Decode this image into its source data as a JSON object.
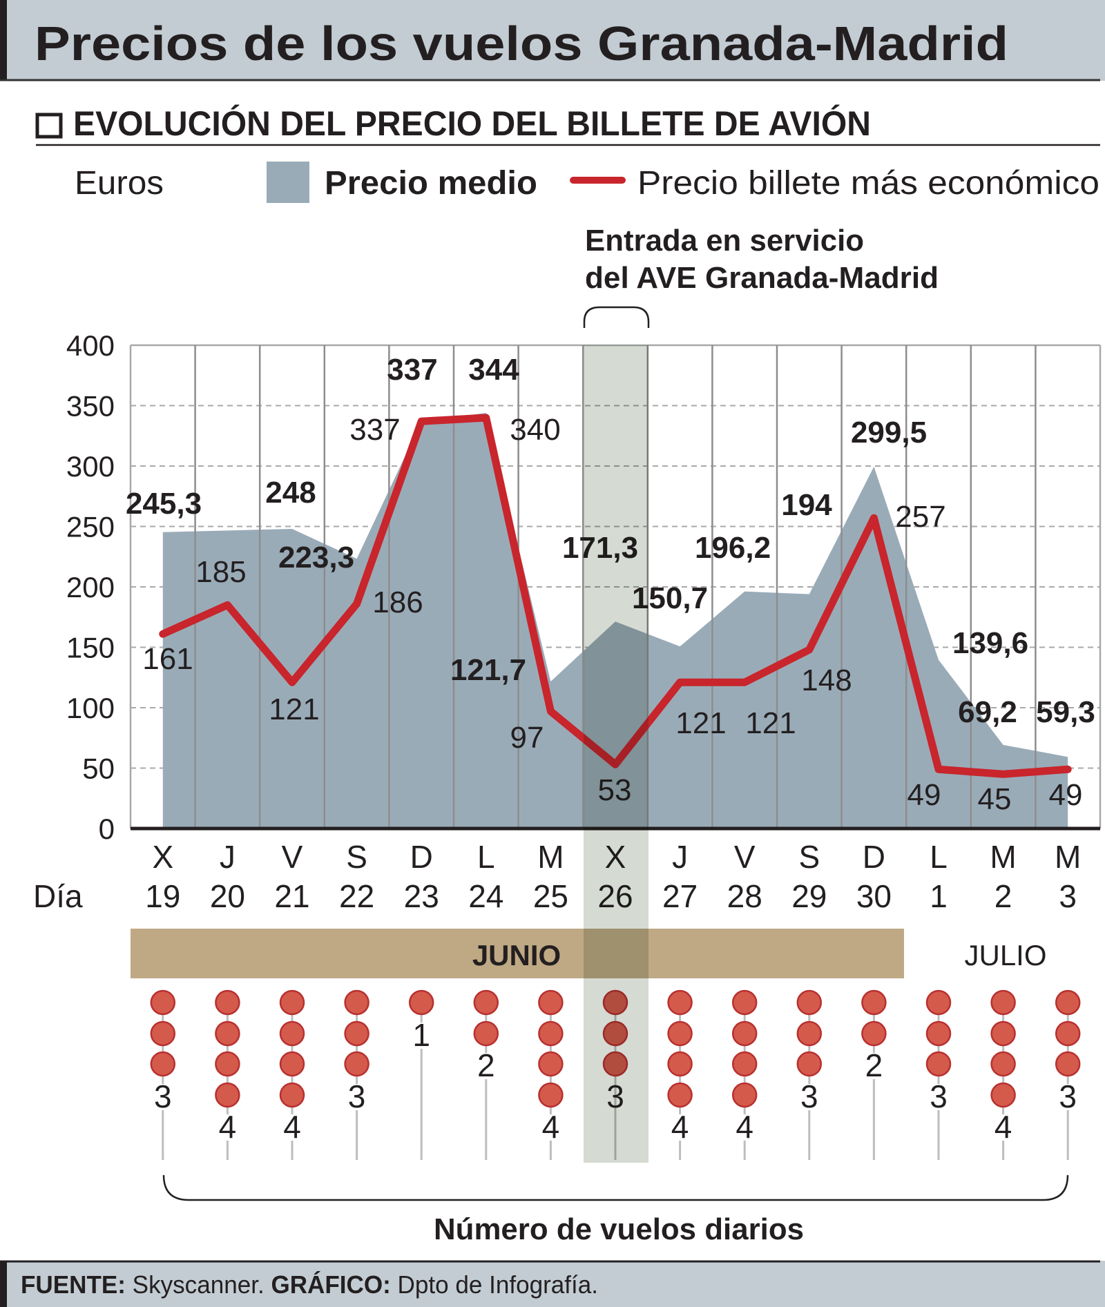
{
  "header": {
    "title": "Precios de los vuelos Granada-Madrid"
  },
  "section": {
    "title": "EVOLUCIÓN DEL PRECIO DEL BILLETE DE AVIÓN"
  },
  "legend": {
    "unit": "Euros",
    "average": "Precio medio",
    "cheapest": "Precio billete más económico"
  },
  "annotation": {
    "line1": "Entrada en servicio",
    "line2": "del AVE Granada-Madrid"
  },
  "axis": {
    "day_label": "Día"
  },
  "months": {
    "june": "JUNIO",
    "july": "JULIO"
  },
  "flights": {
    "caption": "Número de vuelos diarios",
    "counts": [
      3,
      4,
      4,
      3,
      1,
      2,
      4,
      3,
      4,
      4,
      3,
      2,
      3,
      4,
      3
    ],
    "labels": [
      "3",
      "4",
      "4",
      "3",
      "1",
      "2",
      "4",
      "3",
      "4",
      "4",
      "3",
      "2",
      "3",
      "4",
      "3"
    ]
  },
  "footer": {
    "source_label": "FUENTE:",
    "source": " Skyscanner. ",
    "graphic_label": "GRÁFICO:",
    "graphic": " Dpto de Infografía."
  },
  "colors": {
    "average_area": "#9aabb8",
    "cheapest_line": "#c8252c",
    "highlight_band": "#d5dad3",
    "month_bar": "#bfa985",
    "flight_dot": "#d45a4c",
    "header_bg": "#c3ccd3"
  },
  "chart_data": {
    "type": "area+line",
    "ylabel": "Euros",
    "ylim": [
      0,
      400
    ],
    "yticks": [
      "0",
      "50",
      "100",
      "150",
      "200",
      "250",
      "300",
      "350",
      "400"
    ],
    "grid": true,
    "highlight_category_index": 7,
    "categories_weekday": [
      "X",
      "J",
      "V",
      "S",
      "D",
      "L",
      "M",
      "X",
      "J",
      "V",
      "S",
      "D",
      "L",
      "M",
      "M"
    ],
    "categories_day": [
      "19",
      "20",
      "21",
      "22",
      "23",
      "24",
      "25",
      "26",
      "27",
      "28",
      "29",
      "30",
      "1",
      "2",
      "3"
    ],
    "series": [
      {
        "name": "Precio medio",
        "type": "area",
        "values": [
          245.3,
          null,
          248,
          223.3,
          337,
          344,
          121.7,
          171.3,
          150.7,
          196.2,
          194,
          299.5,
          139.6,
          69.2,
          59.3
        ],
        "labels": [
          "245,3",
          "",
          "248",
          "223,3",
          "337",
          "344",
          "121,7",
          "171,3",
          "150,7",
          "196,2",
          "194",
          "299,5",
          "139,6",
          "69,2",
          "59,3"
        ]
      },
      {
        "name": "Precio billete más económico",
        "type": "line",
        "values": [
          161,
          185,
          121,
          186,
          337,
          340,
          97,
          53,
          121,
          121,
          148,
          257,
          49,
          45,
          49
        ],
        "labels": [
          "161",
          "185",
          "121",
          "186",
          "337",
          "340",
          "97",
          "53",
          "121",
          "121",
          "148",
          "257",
          "49",
          "45",
          "49"
        ]
      }
    ]
  }
}
